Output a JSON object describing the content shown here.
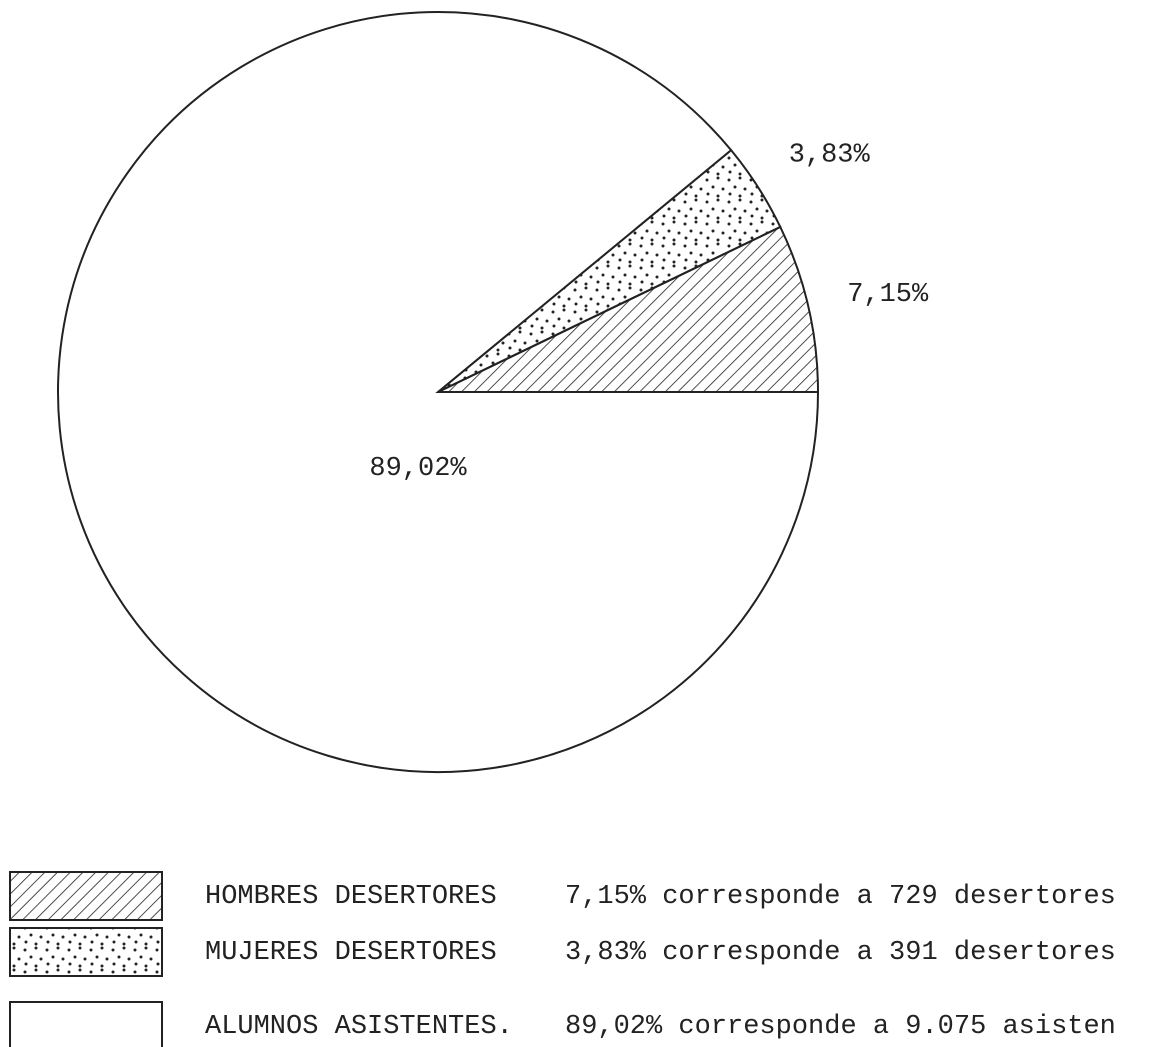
{
  "chart_data": {
    "type": "pie",
    "labels": [
      "HOMBRES DESERTORES",
      "MUJERES DESERTORES",
      "ALUMNOS ASISTENTES."
    ],
    "values": [
      7.15,
      3.83,
      89.02
    ],
    "value_labels": [
      "7,15%",
      "3,83%",
      "89,02%"
    ],
    "descriptions": [
      "7,15% corresponde a 729 desertores",
      "3,83% corresponde a 391 desertores",
      "89,02%  corresponde a 9.075 asisten"
    ],
    "patterns": [
      "hatch",
      "dots",
      "none"
    ],
    "color": "#222222"
  }
}
